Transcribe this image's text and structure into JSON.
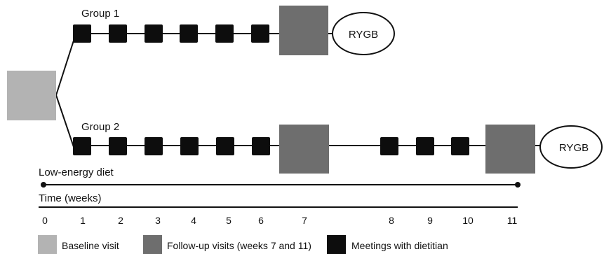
{
  "groups": {
    "group1_label": "Group 1",
    "group2_label": "Group 2",
    "rygb1_label": "RYGB",
    "rygb2_label": "RYGB"
  },
  "diet": {
    "label": "Low-energy diet"
  },
  "time": {
    "label": "Time (weeks)",
    "ticks": [
      "0",
      "1",
      "2",
      "3",
      "4",
      "5",
      "6",
      "7",
      "8",
      "9",
      "10",
      "11"
    ]
  },
  "legend": {
    "baseline": "Baseline visit",
    "followup": "Follow-up visits (weeks 7 and 11)",
    "meetings": "Meetings with dietitian"
  },
  "colors": {
    "baseline": "#b3b3b3",
    "followup": "#6e6e6e",
    "meeting": "#0d0d0d",
    "line": "#111111"
  }
}
